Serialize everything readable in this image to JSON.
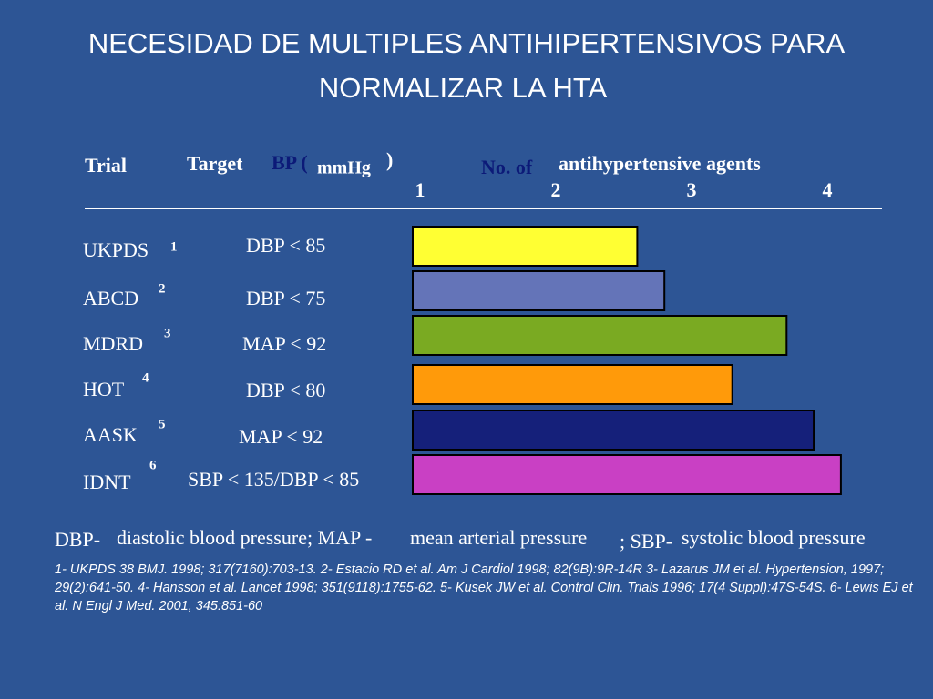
{
  "title": [
    "NECESIDAD DE MULTIPLES ANTIHIPERTENSIVOS PARA",
    "NORMALIZAR LA HTA"
  ],
  "chart_data": {
    "type": "bar",
    "orientation": "horizontal",
    "headers": {
      "trial": "Trial",
      "target": "Target",
      "bp": "BP (",
      "unit": "mmHg",
      "close": ")",
      "no_of": "No. of",
      "agents": "antihypertensive agents"
    },
    "categories": [
      "UKPDS",
      "ABCD",
      "MDRD",
      "HOT",
      "AASK",
      "IDNT"
    ],
    "superscripts": [
      "1",
      "2",
      "3",
      "4",
      "5",
      "6"
    ],
    "targets": [
      "DBP < 85",
      "DBP < 75",
      "MAP < 92",
      "DBP < 80",
      "MAP < 92",
      "SBP < 135/DBP < 85"
    ],
    "values": [
      2.6,
      2.8,
      3.7,
      3.3,
      3.9,
      4.1
    ],
    "colors": [
      "#ffff33",
      "#6474b8",
      "#7aaa22",
      "#ff9a0a",
      "#15207a",
      "#c940c4"
    ],
    "xlim": [
      1,
      4
    ],
    "xticks": [
      1,
      2,
      3,
      4
    ]
  },
  "abbreviations": [
    "DBP-",
    "diastolic blood pressure; MAP -",
    "mean arterial pressure",
    "; SBP-",
    "systolic blood pressure"
  ],
  "references": "1- UKPDS 38 BMJ. 1998; 317(7160):703-13. 2- Estacio RD et al. Am J Cardiol 1998; 82(9B):9R-14R 3- Lazarus JM et al. Hypertension, 1997; 29(2):641-50. 4- Hansson et al. Lancet 1998; 351(9118):1755-62. 5- Kusek JW et al. Control Clin. Trials 1996; 17(4 Suppl):47S-54S. 6- Lewis EJ et al. N Engl J Med. 2001, 345:851-60"
}
